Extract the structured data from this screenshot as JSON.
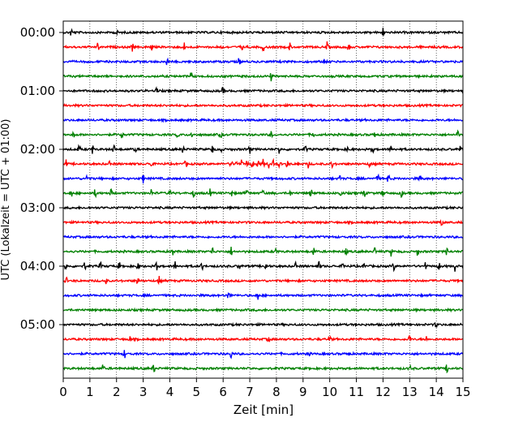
{
  "chart_data": {
    "type": "line",
    "title": "",
    "xlabel": "Zeit  [min]",
    "ylabel": "UTC (Lokalzeit = UTC + 01:00)",
    "xlim": [
      0,
      15
    ],
    "x_ticks": [
      0,
      1,
      2,
      3,
      4,
      5,
      6,
      7,
      8,
      9,
      10,
      11,
      12,
      13,
      14,
      15
    ],
    "x_tick_labels": [
      "0",
      "1",
      "2",
      "3",
      "4",
      "5",
      "6",
      "7",
      "8",
      "9",
      "10",
      "11",
      "12",
      "13",
      "14",
      "15"
    ],
    "y_tick_labels": [
      "00:00",
      "01:00",
      "02:00",
      "03:00",
      "04:00",
      "05:00"
    ],
    "y_tick_rows": [
      0,
      4,
      8,
      12,
      16,
      20
    ],
    "grid": "vertical dotted",
    "trace_interval_min": 15,
    "trace_colors": [
      "#000000",
      "#ff0000",
      "#0000ff",
      "#008000"
    ],
    "series": [
      {
        "start": "00:00",
        "color": "#000000",
        "events": [
          0.3,
          2.0,
          12.0
        ]
      },
      {
        "start": "00:15",
        "color": "#ff0000",
        "events": [
          1.3,
          2.6,
          3.3,
          4.55,
          5.9,
          6.7,
          7.5,
          8.5,
          9.9,
          10.7
        ]
      },
      {
        "start": "00:30",
        "color": "#0000ff",
        "events": [
          3.9,
          6.6,
          9.8
        ]
      },
      {
        "start": "00:45",
        "color": "#008000",
        "events": [
          4.8,
          7.8
        ]
      },
      {
        "start": "01:00",
        "color": "#000000",
        "events": [
          3.5,
          6.0
        ]
      },
      {
        "start": "01:15",
        "color": "#ff0000",
        "events": []
      },
      {
        "start": "01:30",
        "color": "#0000ff",
        "events": []
      },
      {
        "start": "01:45",
        "color": "#008000",
        "events": [
          0.4,
          2.2,
          4.3,
          4.8,
          5.9,
          7.8,
          9.4,
          11.7,
          14.8
        ]
      },
      {
        "start": "02:00",
        "color": "#000000",
        "events": [
          0.6,
          1.1,
          1.9,
          2.7,
          4.5,
          5.6,
          5.9,
          7.0,
          8.1,
          9.1,
          10.7,
          11.6,
          12.3,
          14.9
        ]
      },
      {
        "start": "02:15",
        "color": "#ff0000",
        "events": [
          0.1,
          1.7,
          3.3,
          4.6,
          6.3,
          6.5,
          6.7,
          6.9,
          7.1,
          7.3,
          7.5,
          7.7,
          7.9,
          8.1,
          8.4,
          8.8,
          9.2,
          10.1,
          11.5
        ]
      },
      {
        "start": "02:30",
        "color": "#0000ff",
        "events": [
          0.9,
          3.0,
          10.4,
          11.8,
          12.2,
          13.4
        ]
      },
      {
        "start": "02:45",
        "color": "#008000",
        "events": [
          0.3,
          1.2,
          1.8,
          3.3,
          4.0,
          4.9,
          5.5,
          6.3,
          6.9,
          7.5,
          8.5,
          9.3,
          10.4,
          11.3,
          12.0,
          12.7
        ]
      },
      {
        "start": "03:00",
        "color": "#000000",
        "events": []
      },
      {
        "start": "03:15",
        "color": "#ff0000",
        "events": [
          14.2
        ]
      },
      {
        "start": "03:30",
        "color": "#0000ff",
        "events": []
      },
      {
        "start": "03:45",
        "color": "#008000",
        "events": [
          4.1,
          5.6,
          6.3,
          8.0,
          9.4,
          10.6,
          11.7,
          12.3,
          13.3,
          14.4
        ]
      },
      {
        "start": "04:00",
        "color": "#000000",
        "events": [
          0.1,
          0.8,
          1.4,
          2.1,
          2.8,
          3.5,
          4.2,
          5.2,
          6.6,
          7.6,
          8.7,
          9.6,
          10.5,
          11.3,
          12.4,
          13.6,
          14.1,
          14.7
        ]
      },
      {
        "start": "04:15",
        "color": "#ff0000",
        "events": [
          0.1,
          1.6,
          2.8,
          3.6
        ]
      },
      {
        "start": "04:30",
        "color": "#0000ff",
        "events": [
          6.2,
          7.3
        ]
      },
      {
        "start": "04:45",
        "color": "#008000",
        "events": []
      },
      {
        "start": "05:00",
        "color": "#000000",
        "events": [
          14.0
        ]
      },
      {
        "start": "05:15",
        "color": "#ff0000",
        "events": [
          2.5,
          7.7,
          10.0,
          13.0,
          13.6
        ]
      },
      {
        "start": "05:30",
        "color": "#0000ff",
        "events": [
          2.3,
          6.3,
          9.2,
          10.7
        ]
      },
      {
        "start": "05:45",
        "color": "#008000",
        "events": [
          1.5,
          3.4,
          13.0,
          14.4
        ]
      }
    ]
  }
}
